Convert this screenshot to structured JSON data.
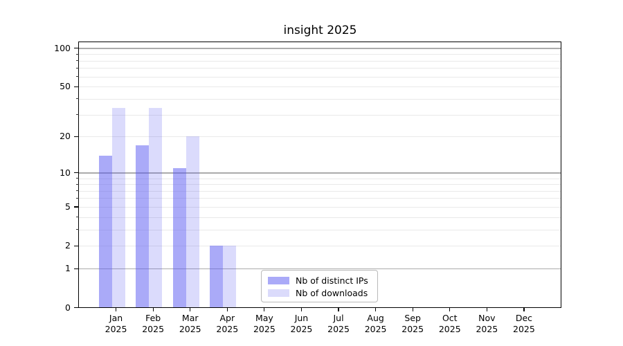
{
  "title": "insight 2025",
  "chart_data": {
    "type": "bar",
    "title": "insight 2025",
    "categories": [
      "Jan 2025",
      "Feb 2025",
      "Mar 2025",
      "Apr 2025",
      "May 2025",
      "Jun 2025",
      "Jul 2025",
      "Aug 2025",
      "Sep 2025",
      "Oct 2025",
      "Nov 2025",
      "Dec 2025"
    ],
    "series": [
      {
        "name": "Nb of distinct IPs",
        "color": "rgba(85,85,242,0.50)",
        "swatch": "#aaaaf8",
        "values": [
          14,
          17,
          11,
          2,
          0,
          0,
          0,
          0,
          0,
          0,
          0,
          0
        ]
      },
      {
        "name": "Nb of downloads",
        "color": "rgba(85,85,242,0.21)",
        "swatch": "#dbdbfb",
        "values": [
          34,
          34,
          20,
          2,
          0,
          0,
          0,
          0,
          0,
          0,
          0,
          0
        ]
      }
    ],
    "xlabel": "",
    "ylabel": "",
    "yscale": "log1p",
    "ylim": [
      0,
      112
    ],
    "yticks": [
      100,
      50,
      20,
      10,
      5,
      2,
      1,
      0
    ],
    "major_gridlines": [
      1,
      10,
      100
    ],
    "minor_gridlines": [
      2,
      3,
      4,
      5,
      6,
      7,
      8,
      9,
      20,
      30,
      40,
      50,
      60,
      70,
      80,
      90
    ],
    "grid_major_color": "#ababab",
    "grid_minor_color": "#e9e9e9",
    "legend_position": "lower-center"
  }
}
